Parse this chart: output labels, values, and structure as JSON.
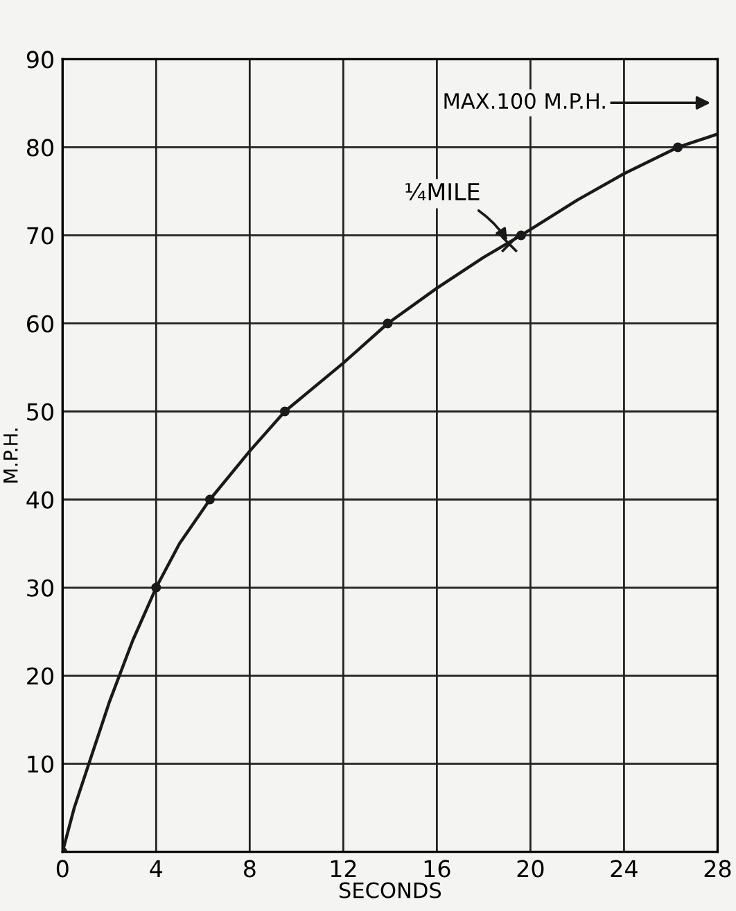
{
  "chart_data": {
    "type": "line",
    "xlabel": "SECONDS",
    "ylabel": "M.P.H.",
    "xlim": [
      0,
      28
    ],
    "ylim": [
      0,
      90
    ],
    "xticks": [
      0,
      4,
      8,
      12,
      16,
      20,
      24,
      28
    ],
    "yticks": [
      10,
      20,
      30,
      40,
      50,
      60,
      70,
      80,
      90
    ],
    "grid": true,
    "legend": false,
    "series": [
      {
        "color": "#1a1a1a",
        "marker": "none",
        "x": [
          0,
          0.5,
          1,
          2,
          3,
          4,
          5,
          6.3,
          8,
          9.5,
          12,
          13.9,
          16,
          18,
          19.6,
          22,
          24,
          26.3,
          28
        ],
        "values": [
          0,
          5,
          9,
          17,
          24,
          30,
          35,
          40,
          45.5,
          50,
          55.5,
          60,
          64,
          67.5,
          70,
          74,
          77,
          80,
          81.5
        ]
      },
      {
        "type": "scatter",
        "color": "#1a1a1a",
        "marker": "circle",
        "x": [
          0,
          4,
          6.3,
          9.5,
          13.9,
          19.6,
          26.3
        ],
        "values": [
          0,
          30,
          40,
          50,
          60,
          70,
          80
        ]
      },
      {
        "type": "scatter",
        "color": "#1a1a1a",
        "marker": "cross",
        "x": [
          19.1
        ],
        "values": [
          69
        ]
      }
    ],
    "annotations": [
      {
        "text": "¼MILE",
        "x": 19.1,
        "y": 69
      },
      "MAX.100 M.P.H."
    ]
  }
}
